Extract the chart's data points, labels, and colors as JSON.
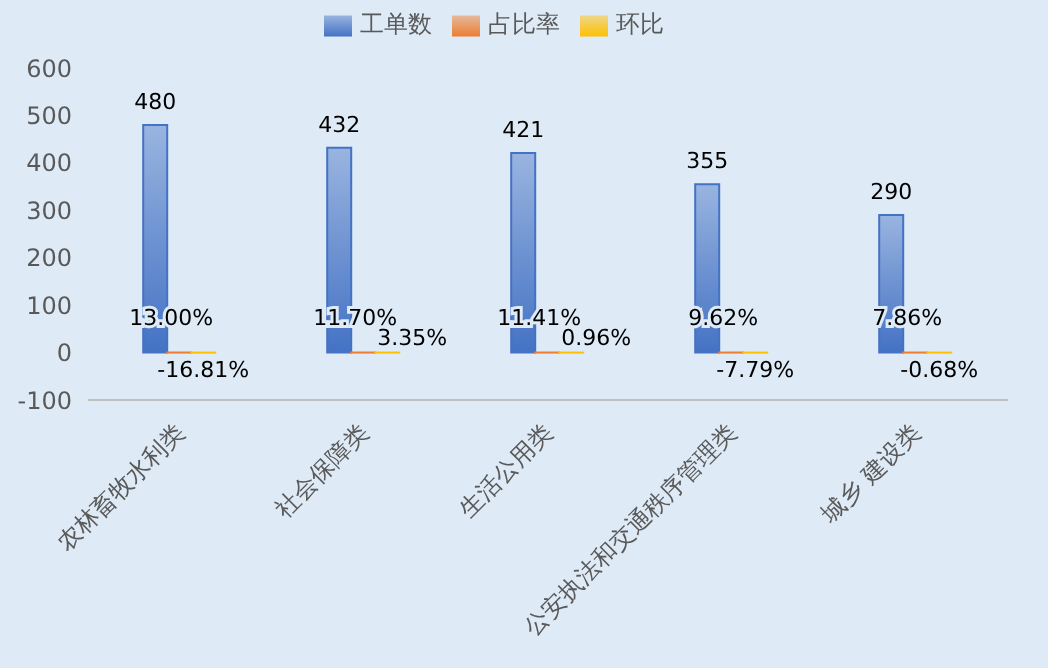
{
  "chart_data": {
    "type": "bar",
    "categories": [
      "农林畜牧水利类",
      "社会保障类",
      "生活公用类",
      "公安执法和交通秩序管理类",
      "城乡 建设类"
    ],
    "series": [
      {
        "name": "工单数",
        "color": "#4472c4",
        "values": [
          480,
          432,
          421,
          355,
          290
        ],
        "value_labels": [
          "480",
          "432",
          "421",
          "355",
          "290"
        ]
      },
      {
        "name": "占比率",
        "color": "#ed7d31",
        "values": [
          0.13,
          0.117,
          0.1141,
          0.0962,
          0.0786
        ],
        "value_labels": [
          "13.00%",
          "11.70%",
          "11.41%",
          "9.62%",
          "7.86%"
        ]
      },
      {
        "name": "环比",
        "color": "#ffc000",
        "values": [
          -0.1681,
          0.0335,
          0.0096,
          -0.0779,
          -0.0068
        ],
        "value_labels": [
          "-16.81%",
          "3.35%",
          "0.96%",
          "-7.79%",
          "-0.68%"
        ]
      }
    ],
    "ylim": [
      -100,
      600
    ],
    "yticks": [
      -100,
      0,
      100,
      200,
      300,
      400,
      500,
      600
    ],
    "grid": false,
    "legend": "top"
  }
}
